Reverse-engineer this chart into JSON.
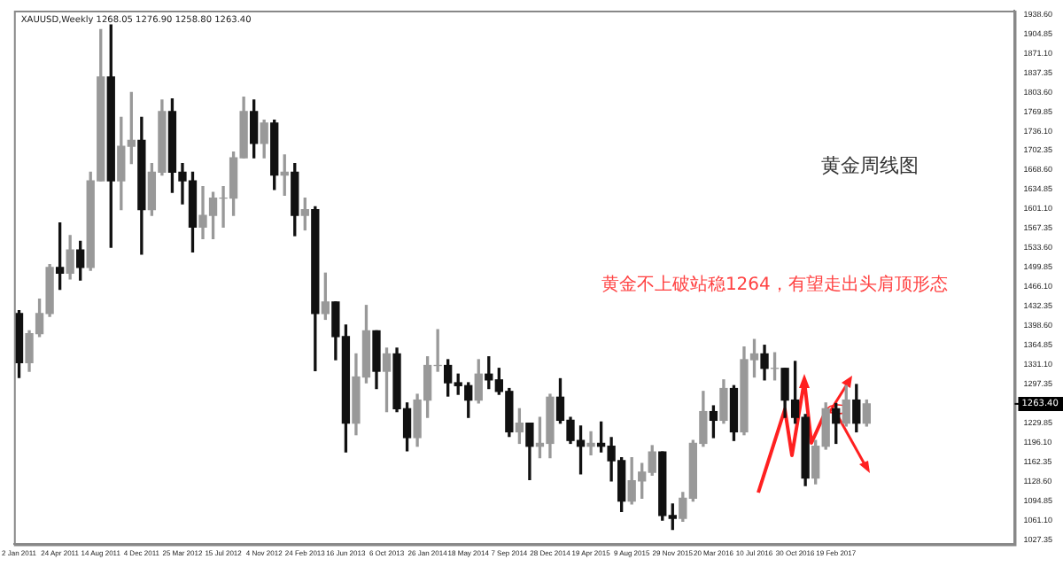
{
  "chart_data": {
    "type": "candlestick",
    "title": "黄金周线图",
    "annotations": [
      "XAUUSD,Weekly 1268.05 1276.90 1258.80 1263.40",
      "黄金不上破站稳1264，有望走出头肩顶形态",
      {
        "text": "1263.40",
        "y": 1263.4
      }
    ],
    "categories": [
      "2 Jan 2011",
      null,
      null,
      null,
      "24 Apr 2011",
      null,
      null,
      null,
      "14 Aug 2011",
      null,
      null,
      null,
      "4 Dec 2011",
      null,
      null,
      null,
      "25 Mar 2012",
      null,
      null,
      null,
      "15 Jul 2012",
      null,
      null,
      null,
      "4 Nov 2012",
      null,
      null,
      null,
      "24 Feb 2013",
      null,
      null,
      null,
      "16 Jun 2013",
      null,
      null,
      null,
      "6 Oct 2013",
      null,
      null,
      null,
      "26 Jan 2014",
      null,
      null,
      null,
      "18 May 2014",
      null,
      null,
      null,
      "7 Sep 2014",
      null,
      null,
      null,
      "28 Dec 2014",
      null,
      null,
      null,
      "19 Apr 2015",
      null,
      null,
      null,
      "9 Aug 2015",
      null,
      null,
      null,
      "29 Nov 2015",
      null,
      null,
      null,
      "20 Mar 2016",
      null,
      null,
      null,
      "10 Jul 2016",
      null,
      null,
      null,
      "30 Oct 2016",
      null,
      null,
      null,
      "19 Feb 2017",
      null,
      null,
      null,
      null,
      null,
      null,
      null,
      null,
      null,
      null,
      null,
      null,
      null,
      null,
      null,
      null,
      null
    ],
    "ohlc": [
      [
        1420,
        1425,
        1309,
        1335
      ],
      [
        1335,
        1390,
        1320,
        1385
      ],
      [
        1385,
        1445,
        1380,
        1420
      ],
      [
        1420,
        1505,
        1415,
        1500
      ],
      [
        1500,
        1577,
        1462,
        1490
      ],
      [
        1490,
        1555,
        1480,
        1530
      ],
      [
        1530,
        1545,
        1478,
        1500
      ],
      [
        1500,
        1665,
        1495,
        1650
      ],
      [
        1650,
        1912,
        1650,
        1830
      ],
      [
        1830,
        1920,
        1535,
        1650
      ],
      [
        1650,
        1760,
        1600,
        1710
      ],
      [
        1710,
        1803,
        1680,
        1720
      ],
      [
        1720,
        1760,
        1523,
        1600
      ],
      [
        1600,
        1680,
        1590,
        1665
      ],
      [
        1665,
        1790,
        1660,
        1770
      ],
      [
        1770,
        1792,
        1630,
        1665
      ],
      [
        1665,
        1680,
        1610,
        1650
      ],
      [
        1650,
        1665,
        1527,
        1570
      ],
      [
        1570,
        1640,
        1550,
        1590
      ],
      [
        1590,
        1630,
        1550,
        1620
      ],
      [
        1620,
        1640,
        1570,
        1620
      ],
      [
        1620,
        1700,
        1590,
        1690
      ],
      [
        1690,
        1795,
        1690,
        1770
      ],
      [
        1770,
        1790,
        1690,
        1715
      ],
      [
        1715,
        1755,
        1690,
        1750
      ],
      [
        1750,
        1755,
        1635,
        1660
      ],
      [
        1660,
        1695,
        1625,
        1665
      ],
      [
        1665,
        1680,
        1555,
        1590
      ],
      [
        1590,
        1620,
        1565,
        1600
      ],
      [
        1600,
        1605,
        1321,
        1420
      ],
      [
        1420,
        1490,
        1410,
        1440
      ],
      [
        1440,
        1440,
        1340,
        1380
      ],
      [
        1380,
        1400,
        1180,
        1230
      ],
      [
        1230,
        1350,
        1210,
        1310
      ],
      [
        1310,
        1434,
        1300,
        1390
      ],
      [
        1390,
        1390,
        1290,
        1320
      ],
      [
        1320,
        1360,
        1250,
        1350
      ],
      [
        1350,
        1360,
        1250,
        1255
      ],
      [
        1255,
        1265,
        1182,
        1205
      ],
      [
        1205,
        1280,
        1190,
        1270
      ],
      [
        1270,
        1345,
        1240,
        1330
      ],
      [
        1330,
        1392,
        1320,
        1330
      ],
      [
        1330,
        1340,
        1277,
        1300
      ],
      [
        1300,
        1315,
        1280,
        1295
      ],
      [
        1295,
        1300,
        1240,
        1270
      ],
      [
        1270,
        1340,
        1265,
        1315
      ],
      [
        1315,
        1345,
        1290,
        1305
      ],
      [
        1305,
        1325,
        1280,
        1285
      ],
      [
        1285,
        1290,
        1207,
        1215
      ],
      [
        1215,
        1255,
        1195,
        1230
      ],
      [
        1230,
        1230,
        1132,
        1190
      ],
      [
        1190,
        1240,
        1170,
        1195
      ],
      [
        1195,
        1280,
        1170,
        1275
      ],
      [
        1275,
        1307,
        1230,
        1235
      ],
      [
        1235,
        1240,
        1195,
        1200
      ],
      [
        1200,
        1225,
        1142,
        1190
      ],
      [
        1190,
        1215,
        1175,
        1195
      ],
      [
        1195,
        1232,
        1180,
        1190
      ],
      [
        1190,
        1205,
        1130,
        1165
      ],
      [
        1165,
        1170,
        1077,
        1095
      ],
      [
        1095,
        1170,
        1090,
        1130
      ],
      [
        1130,
        1160,
        1100,
        1145
      ],
      [
        1145,
        1191,
        1140,
        1180
      ],
      [
        1180,
        1180,
        1062,
        1070
      ],
      [
        1070,
        1090,
        1046,
        1065
      ],
      [
        1065,
        1110,
        1060,
        1100
      ],
      [
        1100,
        1200,
        1095,
        1195
      ],
      [
        1195,
        1285,
        1190,
        1250
      ],
      [
        1250,
        1260,
        1205,
        1235
      ],
      [
        1235,
        1305,
        1230,
        1290
      ],
      [
        1290,
        1295,
        1200,
        1215
      ],
      [
        1215,
        1362,
        1210,
        1340
      ],
      [
        1340,
        1375,
        1310,
        1350
      ],
      [
        1350,
        1365,
        1305,
        1325
      ],
      [
        1325,
        1352,
        1305,
        1325
      ],
      [
        1325,
        1325,
        1240,
        1270
      ],
      [
        1270,
        1337,
        1230,
        1240
      ],
      [
        1240,
        1245,
        1122,
        1135
      ],
      [
        1135,
        1200,
        1125,
        1190
      ],
      [
        1190,
        1265,
        1185,
        1255
      ],
      [
        1255,
        1264,
        1195,
        1230
      ],
      [
        1230,
        1295,
        1225,
        1270
      ],
      [
        1270,
        1297,
        1215,
        1230
      ],
      [
        1230,
        1270,
        1225,
        1263.4
      ],
      null,
      null,
      null,
      null,
      null,
      null,
      null,
      null,
      null,
      null,
      null,
      null,
      null,
      null
    ],
    "colors": [
      "#111111",
      "#999999",
      "#999999",
      "#999999",
      "#111111",
      "#999999",
      "#111111",
      "#999999",
      "#999999",
      "#111111",
      "#999999",
      "#999999",
      "#111111",
      "#999999",
      "#999999",
      "#111111",
      "#111111",
      "#111111",
      "#999999",
      "#999999",
      "#999999",
      "#999999",
      "#999999",
      "#111111",
      "#999999",
      "#111111",
      "#999999",
      "#111111",
      "#999999",
      "#111111",
      "#999999",
      "#111111",
      "#111111",
      "#999999",
      "#999999",
      "#111111",
      "#999999",
      "#111111",
      "#111111",
      "#999999",
      "#999999",
      "#999999",
      "#111111",
      "#111111",
      "#111111",
      "#999999",
      "#111111",
      "#111111",
      "#111111",
      "#999999",
      "#111111",
      "#999999",
      "#999999",
      "#111111",
      "#111111",
      "#111111",
      "#999999",
      "#111111",
      "#111111",
      "#111111",
      "#999999",
      "#999999",
      "#999999",
      "#111111",
      "#111111",
      "#999999",
      "#999999",
      "#999999",
      "#111111",
      "#999999",
      "#111111",
      "#999999",
      "#999999",
      "#111111",
      "#999999",
      "#111111",
      "#111111",
      "#111111",
      "#999999",
      "#999999",
      "#111111",
      "#999999",
      "#111111",
      "#999999",
      null,
      null,
      null,
      null,
      null,
      null,
      null,
      null,
      null,
      null,
      null,
      null,
      null,
      null
    ],
    "ylim": [
      1020,
      1945
    ],
    "yticks": [
      {
        "value": 1027.35,
        "label": "1027.35"
      },
      {
        "value": 1061.1,
        "label": "1061.10"
      },
      {
        "value": 1094.85,
        "label": "1094.85"
      },
      {
        "value": 1128.6,
        "label": "1128.60"
      },
      {
        "value": 1162.35,
        "label": "1162.35"
      },
      {
        "value": 1196.1,
        "label": "1196.10"
      },
      {
        "value": 1229.85,
        "label": "1229.85"
      },
      {
        "value": 1297.35,
        "label": "1297.35"
      },
      {
        "value": 1331.1,
        "label": "1331.10"
      },
      {
        "value": 1364.85,
        "label": "1364.85"
      },
      {
        "value": 1398.6,
        "label": "1398.60"
      },
      {
        "value": 1432.35,
        "label": "1432.35"
      },
      {
        "value": 1466.1,
        "label": "1466.10"
      },
      {
        "value": 1499.85,
        "label": "1499.85"
      },
      {
        "value": 1533.6,
        "label": "1533.60"
      },
      {
        "value": 1567.35,
        "label": "1567.35"
      },
      {
        "value": 1601.1,
        "label": "1601.10"
      },
      {
        "value": 1634.85,
        "label": "1634.85"
      },
      {
        "value": 1668.6,
        "label": "1668.60"
      },
      {
        "value": 1702.35,
        "label": "1702.35"
      },
      {
        "value": 1736.1,
        "label": "1736.10"
      },
      {
        "value": 1769.85,
        "label": "1769.85"
      },
      {
        "value": 1803.6,
        "label": "1803.60"
      },
      {
        "value": 1837.35,
        "label": "1837.35"
      },
      {
        "value": 1871.1,
        "label": "1871.10"
      },
      {
        "value": 1904.85,
        "label": "1904.85"
      },
      {
        "value": 1938.6,
        "label": "1938.60"
      }
    ],
    "grid": false,
    "legend": false
  }
}
